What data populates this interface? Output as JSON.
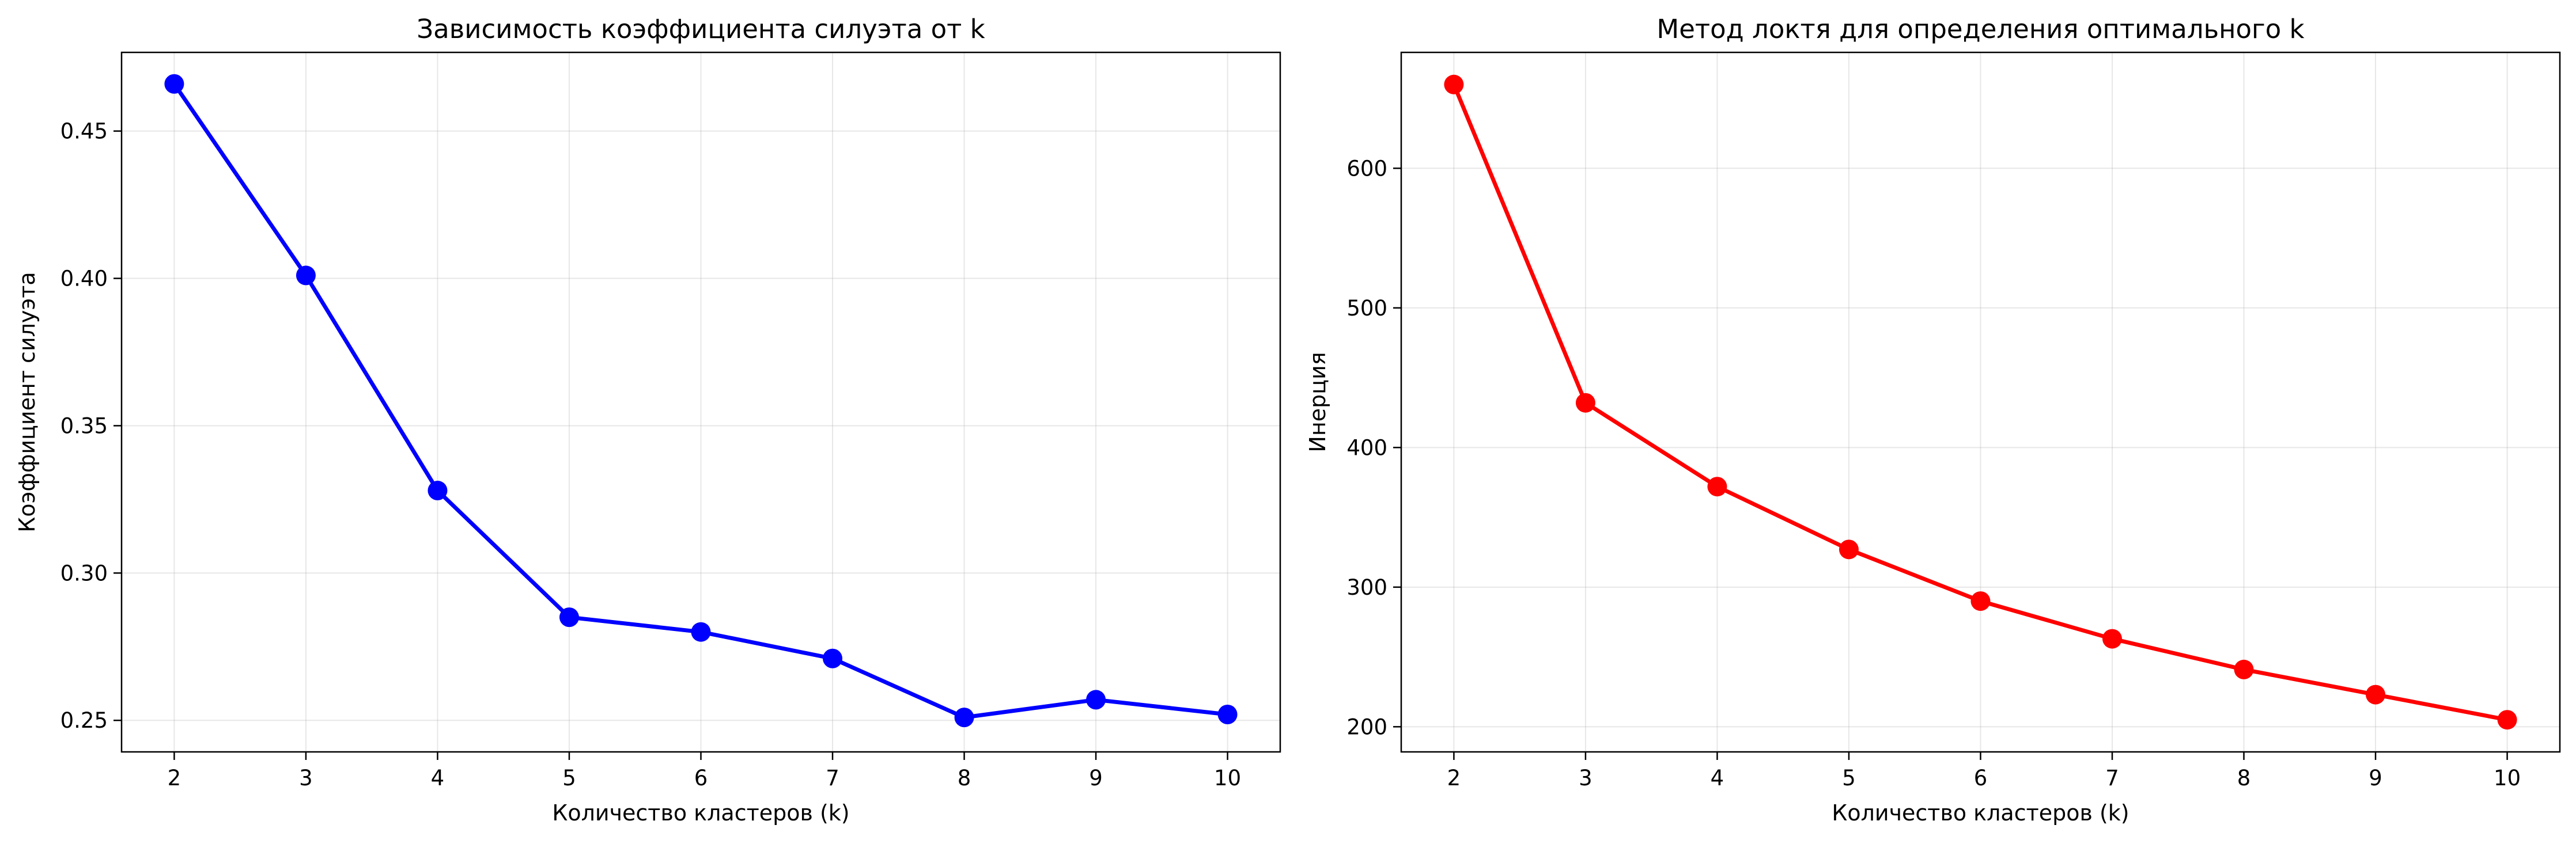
{
  "chart_data": [
    {
      "type": "line",
      "title": "Зависимость коэффициента силуэта от k",
      "xlabel": "Количество кластеров (k)",
      "ylabel": "Коэффициент силуэта",
      "x": [
        2,
        3,
        4,
        5,
        6,
        7,
        8,
        9,
        10
      ],
      "series": [
        {
          "values": [
            0.466,
            0.401,
            0.328,
            0.285,
            0.28,
            0.271,
            0.251,
            0.257,
            0.252
          ],
          "color": "#0000ff",
          "marker": "circle"
        }
      ],
      "xticks": [
        "2",
        "3",
        "4",
        "5",
        "6",
        "7",
        "8",
        "9",
        "10"
      ],
      "yticks": [
        0.25,
        0.3,
        0.35,
        0.4,
        0.45
      ],
      "ytick_labels": [
        "0.25",
        "0.30",
        "0.35",
        "0.40",
        "0.45"
      ],
      "xlim": [
        1.6,
        10.4
      ],
      "ylim": [
        0.2393,
        0.4767
      ],
      "grid": true
    },
    {
      "type": "line",
      "title": "Метод локтя для определения оптимального k",
      "xlabel": "Количество кластеров (k)",
      "ylabel": "Инерция",
      "x": [
        2,
        3,
        4,
        5,
        6,
        7,
        8,
        9,
        10
      ],
      "series": [
        {
          "values": [
            660,
            432,
            372,
            327,
            290,
            263,
            241,
            223,
            205
          ],
          "color": "#ff0000",
          "marker": "circle"
        }
      ],
      "xticks": [
        "2",
        "3",
        "4",
        "5",
        "6",
        "7",
        "8",
        "9",
        "10"
      ],
      "yticks": [
        200,
        300,
        400,
        500,
        600
      ],
      "ytick_labels": [
        "200",
        "300",
        "400",
        "500",
        "600"
      ],
      "xlim": [
        1.6,
        10.4
      ],
      "ylim": [
        182,
        683
      ],
      "grid": true
    }
  ]
}
